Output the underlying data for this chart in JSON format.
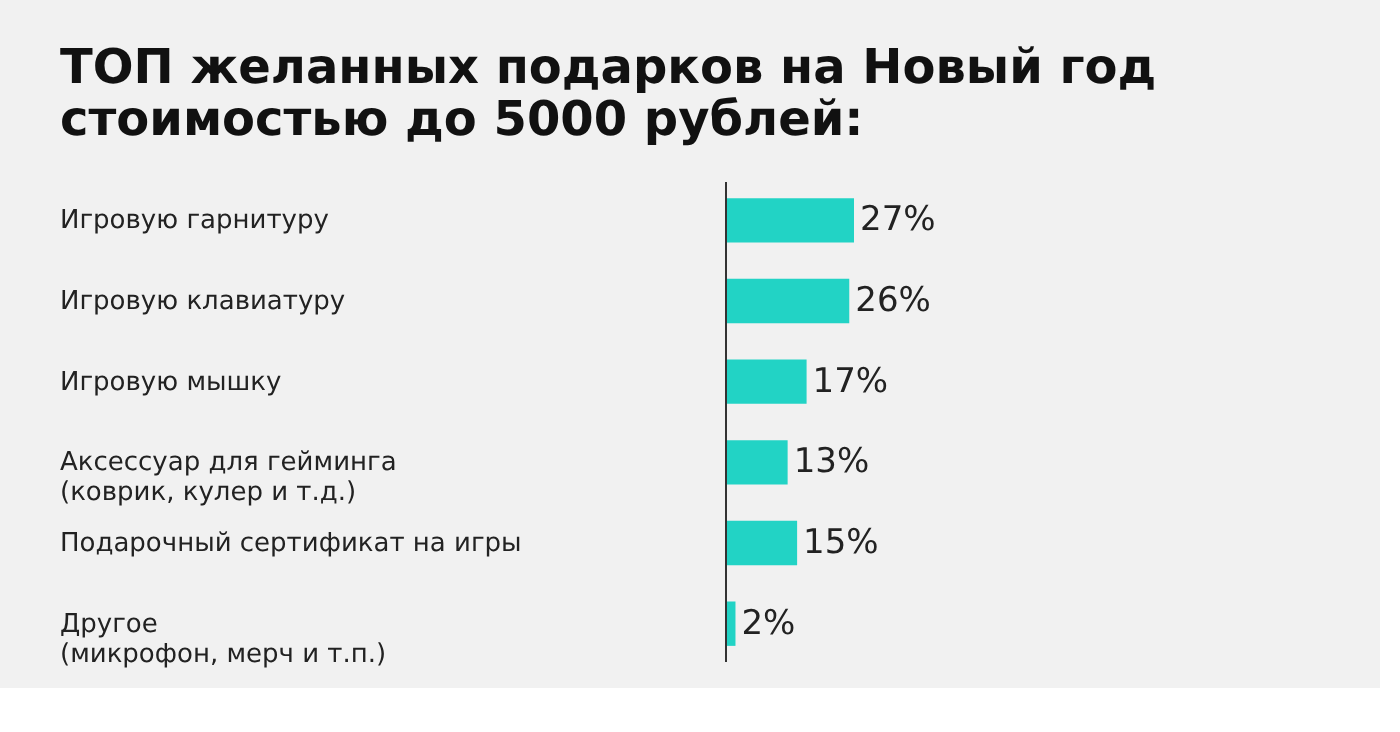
{
  "chart_data": {
    "type": "bar",
    "orientation": "horizontal",
    "title": [
      "ТОП желанных подарков на Новый год",
      "стоимостью до 5000 рублей:"
    ],
    "categories": [
      "Игровую гарнитуру",
      "Игровую клавиатуру",
      "Игровую мышку",
      "Аксессуар для гейминга\n(коврик, кулер и т.д.)",
      "Подарочный сертификат на игры",
      "Другое\n(микрофон, мерч и т.п.)"
    ],
    "values": [
      27,
      26,
      17,
      13,
      15,
      2
    ],
    "value_labels": [
      "27%",
      "26%",
      "17%",
      "13%",
      "15%",
      "2%"
    ],
    "color": "#22d3c5"
  }
}
